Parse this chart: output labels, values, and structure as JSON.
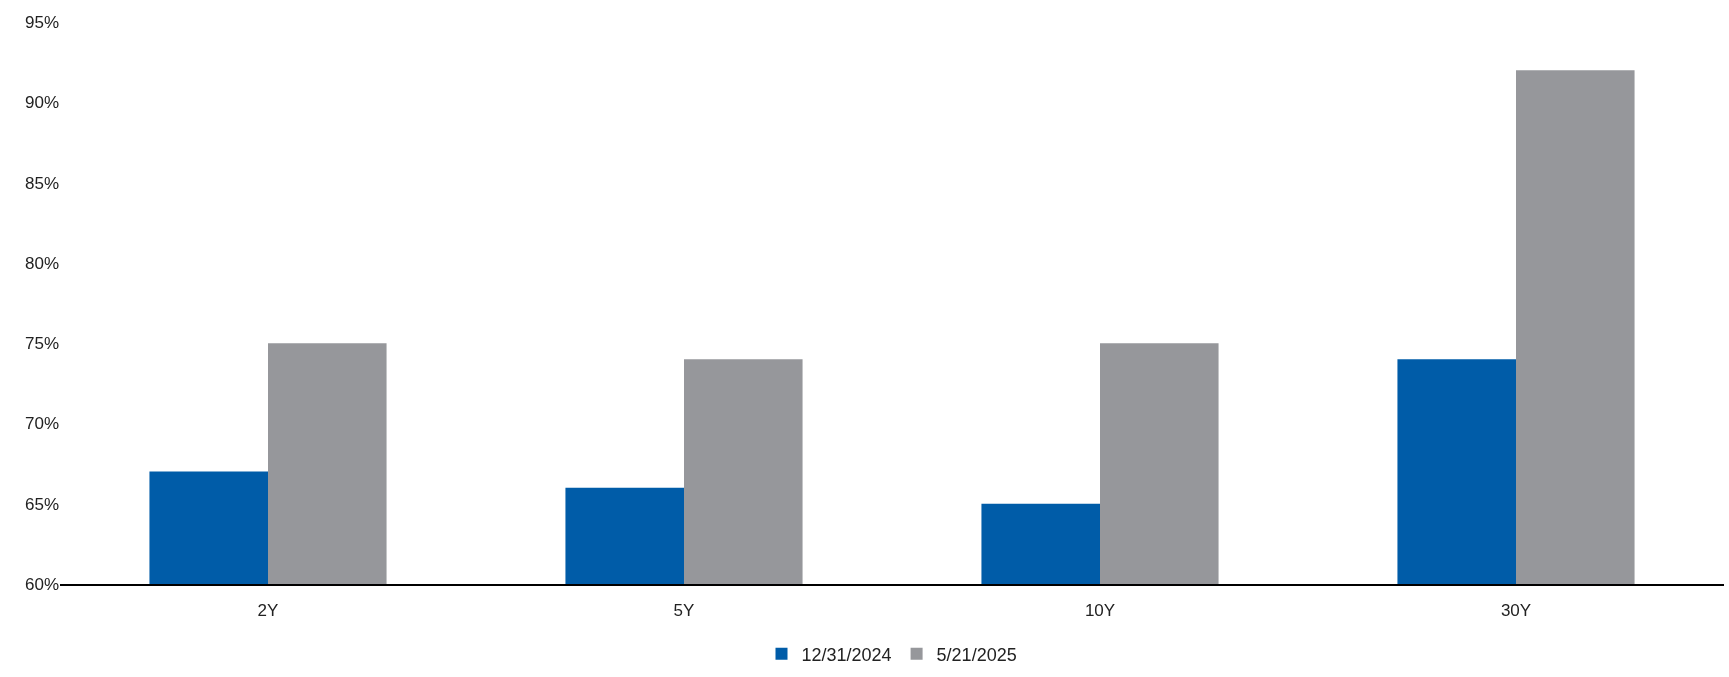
{
  "chart_data": {
    "type": "bar",
    "categories": [
      "2Y",
      "5Y",
      "10Y",
      "30Y"
    ],
    "series": [
      {
        "name": "12/31/2024",
        "color": "#005ca8",
        "values": [
          67,
          66,
          65,
          74
        ]
      },
      {
        "name": "5/21/2025",
        "color": "#96979b",
        "values": [
          75,
          74,
          75,
          92
        ]
      }
    ],
    "ylim": [
      60,
      95
    ],
    "yticks": [
      {
        "value": 60,
        "label": "60%"
      },
      {
        "value": 65,
        "label": "65%"
      },
      {
        "value": 70,
        "label": "70%"
      },
      {
        "value": 75,
        "label": "75%"
      },
      {
        "value": 80,
        "label": "80%"
      },
      {
        "value": 85,
        "label": "85%"
      },
      {
        "value": 90,
        "label": "90%"
      },
      {
        "value": 95,
        "label": "95%"
      }
    ],
    "legend": "bottom"
  }
}
